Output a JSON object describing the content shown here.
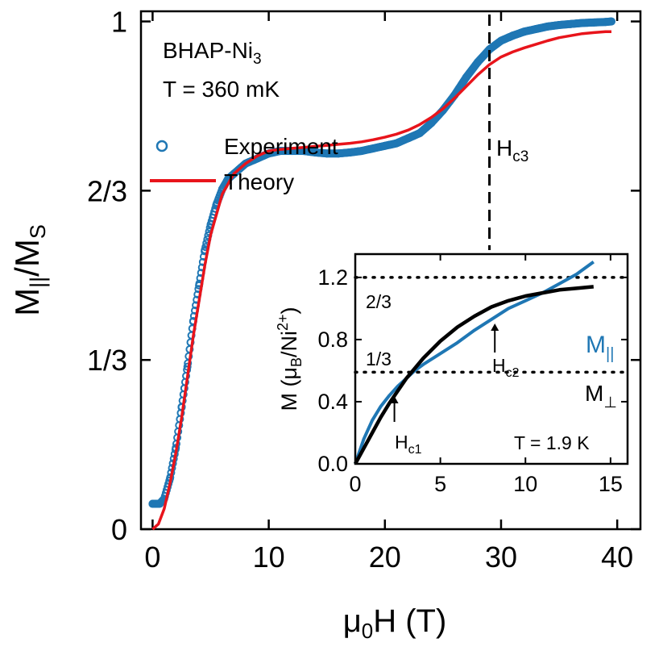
{
  "chart_data": [
    {
      "type": "scatter",
      "xlabel": "μ0H (T)",
      "ylabel": "M||/MS",
      "xlim": [
        -1,
        42
      ],
      "ylim": [
        0,
        1.02
      ],
      "x_ticks": [
        0,
        10,
        20,
        30,
        40
      ],
      "x_tick_labels": [
        "0",
        "10",
        "20",
        "30",
        "40"
      ],
      "y_ticks": [
        0,
        0.3333,
        0.6667,
        1
      ],
      "y_tick_labels": [
        "0",
        "1/3",
        "2/3",
        "1"
      ],
      "annotations": {
        "sample": "BHAP-Ni3",
        "temperature": "T = 360 mK",
        "critical_field": "Hc3",
        "critical_field_value": 29
      },
      "legend": {
        "placement": "top-left",
        "entries": [
          "Experiment",
          "Theory"
        ]
      },
      "colors": {
        "experiment": "#1f77b4",
        "theory": "#e8141b",
        "dashed_line": "#000000"
      },
      "series": [
        {
          "name": "Experiment",
          "style": "open-circles",
          "x": [
            0.0,
            0.3,
            0.6,
            1.0,
            1.5,
            2.0,
            2.5,
            3.0,
            3.5,
            4.0,
            4.5,
            5.0,
            5.5,
            6.0,
            6.5,
            7.0,
            7.5,
            8.0,
            9.0,
            10.0,
            11.0,
            12.0,
            13.0,
            14.0,
            15.0,
            16.0,
            17.0,
            18.0,
            19.0,
            20.0,
            21.0,
            22.0,
            23.0,
            24.0,
            25.0,
            26.0,
            27.0,
            28.0,
            29.0,
            30.0,
            31.0,
            32.0,
            33.0,
            34.0,
            35.0,
            36.0,
            37.0,
            38.0,
            39.0,
            39.5
          ],
          "y": [
            0.05,
            0.05,
            0.05,
            0.06,
            0.1,
            0.16,
            0.24,
            0.32,
            0.41,
            0.48,
            0.55,
            0.6,
            0.64,
            0.67,
            0.69,
            0.7,
            0.71,
            0.72,
            0.73,
            0.74,
            0.745,
            0.745,
            0.745,
            0.742,
            0.74,
            0.74,
            0.742,
            0.745,
            0.75,
            0.755,
            0.76,
            0.77,
            0.78,
            0.8,
            0.825,
            0.855,
            0.89,
            0.92,
            0.945,
            0.962,
            0.972,
            0.98,
            0.985,
            0.99,
            0.993,
            0.995,
            0.997,
            0.998,
            0.999,
            1.0
          ]
        },
        {
          "name": "Theory",
          "style": "line",
          "x": [
            0.0,
            0.5,
            1.0,
            1.5,
            2.0,
            2.5,
            3.0,
            3.5,
            4.0,
            4.5,
            5.0,
            5.5,
            6.0,
            6.5,
            7.0,
            7.5,
            8.0,
            9.0,
            10.0,
            11.0,
            12.0,
            13.0,
            14.0,
            15.0,
            16.0,
            17.0,
            18.0,
            19.0,
            20.0,
            21.0,
            22.0,
            23.0,
            24.0,
            25.0,
            26.0,
            27.0,
            28.0,
            29.0,
            30.0,
            31.0,
            32.0,
            33.0,
            34.0,
            35.0,
            36.0,
            37.0,
            38.0,
            39.0,
            39.5
          ],
          "y": [
            0.0,
            0.01,
            0.04,
            0.09,
            0.15,
            0.22,
            0.3,
            0.38,
            0.45,
            0.52,
            0.58,
            0.62,
            0.66,
            0.68,
            0.7,
            0.71,
            0.72,
            0.735,
            0.745,
            0.748,
            0.75,
            0.752,
            0.754,
            0.756,
            0.758,
            0.76,
            0.763,
            0.767,
            0.772,
            0.778,
            0.786,
            0.797,
            0.811,
            0.828,
            0.849,
            0.872,
            0.895,
            0.915,
            0.93,
            0.94,
            0.948,
            0.955,
            0.962,
            0.968,
            0.972,
            0.976,
            0.978,
            0.98,
            0.98
          ]
        }
      ]
    },
    {
      "type": "line",
      "xlabel": "",
      "ylabel": "M (μB/Ni2+)",
      "xlim": [
        0,
        16
      ],
      "ylim": [
        0,
        1.35
      ],
      "x_ticks": [
        0,
        5,
        10,
        15
      ],
      "x_tick_labels": [
        "0",
        "5",
        "10",
        "15"
      ],
      "y_ticks": [
        0,
        0.4,
        0.8,
        1.2
      ],
      "y_tick_labels": [
        "0.0",
        "0.4",
        "0.8",
        "1.2"
      ],
      "reference_lines": [
        {
          "label": "2/3",
          "y": 1.2
        },
        {
          "label": "1/3",
          "y": 0.59
        }
      ],
      "annotations": {
        "temperature": "T = 1.9 K",
        "hc1": "Hc1",
        "hc1_x": 2.3,
        "hc2": "Hc2",
        "hc2_x": 8.2
      },
      "colors": {
        "parallel": "#1f77b4",
        "perpendicular": "#000000"
      },
      "series": [
        {
          "name": "M||",
          "x": [
            0.0,
            0.5,
            1.0,
            1.5,
            2.0,
            2.5,
            3.0,
            3.5,
            4.0,
            5.0,
            6.0,
            7.0,
            8.0,
            9.0,
            10.0,
            11.0,
            12.0,
            13.0,
            14.0
          ],
          "y": [
            0.0,
            0.16,
            0.28,
            0.37,
            0.44,
            0.5,
            0.55,
            0.6,
            0.64,
            0.71,
            0.78,
            0.86,
            0.93,
            1.0,
            1.05,
            1.1,
            1.16,
            1.22,
            1.3
          ]
        },
        {
          "name": "M⊥",
          "x": [
            0.0,
            0.5,
            1.0,
            1.5,
            2.0,
            2.5,
            3.0,
            4.0,
            5.0,
            6.0,
            7.0,
            8.0,
            9.0,
            10.0,
            11.0,
            12.0,
            13.0,
            14.0
          ],
          "y": [
            0.0,
            0.1,
            0.2,
            0.3,
            0.39,
            0.47,
            0.55,
            0.68,
            0.79,
            0.88,
            0.95,
            1.01,
            1.05,
            1.08,
            1.1,
            1.12,
            1.13,
            1.14
          ]
        }
      ]
    }
  ]
}
